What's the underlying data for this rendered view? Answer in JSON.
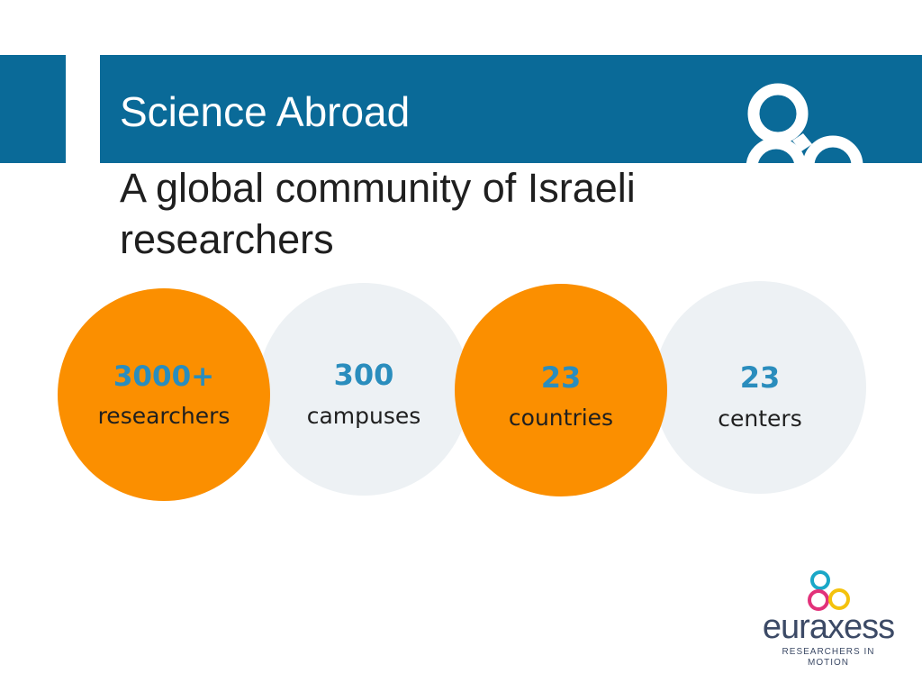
{
  "header": {
    "title": "Science Abroad"
  },
  "subtitle": "A global community of Israeli researchers",
  "stats": [
    {
      "number": "3000+",
      "label": "researchers",
      "color": "#fb8f00"
    },
    {
      "number": "300",
      "label": "campuses",
      "color": "#edf1f4"
    },
    {
      "number": "23",
      "label": "countries",
      "color": "#fb8f00"
    },
    {
      "number": "23",
      "label": "centers",
      "color": "#edf1f4"
    }
  ],
  "brand": {
    "wordmark": "euraxess",
    "tagline": "RESEARCHERS IN MOTION",
    "icon": "euraxess-rings-icon"
  },
  "colors": {
    "header_blue": "#0a6a98",
    "accent_orange": "#fb8f00",
    "number_blue": "#2a8dbd",
    "circle_gray": "#edf1f4"
  }
}
